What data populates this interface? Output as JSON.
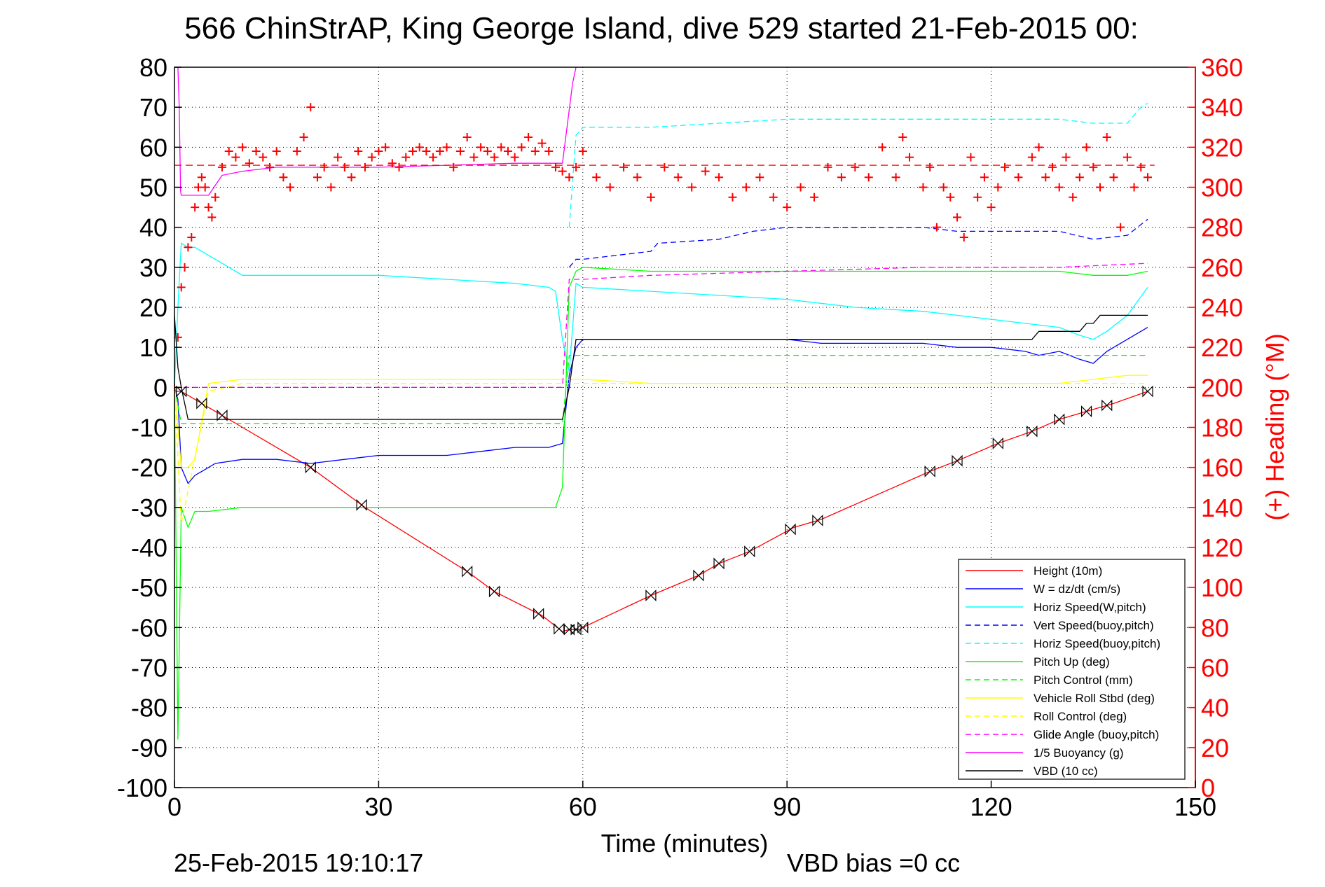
{
  "chart_data": {
    "type": "line",
    "title": "566 ChinStrAP, King George Island, dive 529 started 21-Feb-2015 00:",
    "xlabel": "Time (minutes)",
    "ylabel": "",
    "y2label": "(+) Heading (°M)",
    "xlim": [
      0,
      150
    ],
    "ylim": [
      -100,
      80
    ],
    "y2lim": [
      0,
      360
    ],
    "xticks": [
      0,
      30,
      60,
      90,
      120,
      150
    ],
    "yticks": [
      80,
      70,
      60,
      50,
      40,
      30,
      20,
      10,
      0,
      -10,
      -20,
      -30,
      -40,
      -50,
      -60,
      -70,
      -80,
      -90,
      -100
    ],
    "y2ticks": [
      360,
      340,
      320,
      300,
      280,
      260,
      240,
      220,
      200,
      180,
      160,
      140,
      120,
      100,
      80,
      60,
      40,
      20,
      0
    ],
    "grid": true,
    "legend_position": "bottom-right",
    "colors": {
      "right_axis": "#ff0000",
      "height": "#ff0000",
      "w": "#0000ff",
      "horiz_speed": "#00ffff",
      "pitch": "#00ff00",
      "roll": "#ffff00",
      "glide": "#ff00ff",
      "vbd": "#000000"
    },
    "series": [
      {
        "name": "Height (10m)",
        "color": "#ff0000",
        "dash": false,
        "x": [
          0,
          1,
          5,
          10,
          20,
          28,
          43,
          47,
          54,
          57,
          58,
          59.5,
          60,
          70,
          77,
          80,
          84.5,
          91,
          95,
          111,
          115.5,
          121,
          126,
          130,
          134,
          138,
          143
        ],
        "y": [
          -1,
          -1,
          -5,
          -10,
          -20,
          -30,
          -46,
          -51,
          -57,
          -61,
          -60.5,
          -60.5,
          -60,
          -52,
          -47,
          -44,
          -41,
          -35,
          -33,
          -21,
          -18,
          -14,
          -11,
          -8,
          -6,
          -4,
          -1
        ]
      },
      {
        "name": "W = dz/dt (cm/s)",
        "color": "#0000ff",
        "dash": false,
        "x": [
          0,
          0.5,
          1,
          2,
          3,
          4,
          6,
          10,
          15,
          20,
          25,
          30,
          35,
          40,
          45,
          50,
          55,
          57,
          58,
          59,
          60,
          65,
          70,
          75,
          80,
          85,
          90,
          95,
          100,
          105,
          110,
          115,
          120,
          125,
          127,
          130,
          133,
          135,
          137,
          140,
          143
        ],
        "y": [
          0,
          -3,
          -20,
          -24,
          -22,
          -21,
          -19,
          -18,
          -18,
          -19,
          -18,
          -17,
          -17,
          -17,
          -16,
          -15,
          -15,
          -14,
          3,
          10,
          12,
          12,
          12,
          12,
          12,
          12,
          12,
          11,
          11,
          11,
          11,
          10,
          10,
          9,
          8,
          9,
          7,
          6,
          9,
          12,
          15
        ]
      },
      {
        "name": "Horiz Speed(W,pitch)",
        "color": "#00ffff",
        "dash": false,
        "x": [
          0,
          0.5,
          1,
          2,
          3,
          5,
          8,
          10,
          20,
          30,
          40,
          50,
          55,
          56,
          57,
          58,
          59,
          60,
          70,
          80,
          90,
          100,
          110,
          120,
          125,
          130,
          133,
          135,
          137,
          140,
          143
        ],
        "y": [
          0,
          20,
          36,
          35,
          35,
          33,
          30,
          28,
          28,
          28,
          27,
          26,
          25,
          24,
          12,
          4,
          26,
          25,
          24,
          23,
          22,
          20,
          19,
          17,
          16,
          15,
          13,
          12,
          14,
          18,
          25
        ]
      },
      {
        "name": "Vert Speed(buoy,pitch)",
        "color": "#0000ff",
        "dash": true,
        "x": [
          58,
          59,
          60,
          65,
          70,
          71,
          80,
          85,
          90,
          100,
          105,
          110,
          115,
          120,
          125,
          130,
          135,
          140,
          143
        ],
        "y": [
          30,
          32,
          32,
          33,
          34,
          36,
          37,
          39,
          40,
          40,
          40,
          40,
          39,
          39,
          39,
          39,
          37,
          38,
          42
        ]
      },
      {
        "name": "Horiz Speed(buoy,pitch)",
        "color": "#00ffff",
        "dash": true,
        "x": [
          58,
          59,
          60,
          70,
          80,
          90,
          100,
          110,
          115,
          120,
          125,
          130,
          135,
          140,
          142,
          143
        ],
        "y": [
          40,
          63,
          65,
          65,
          66,
          67,
          67,
          67,
          67,
          67,
          67,
          67,
          66,
          66,
          70,
          71
        ]
      },
      {
        "name": "Pitch Up (deg)",
        "color": "#00ff00",
        "dash": false,
        "x": [
          0,
          0.5,
          1,
          2,
          3,
          5,
          10,
          20,
          30,
          40,
          50,
          56,
          57,
          58,
          59,
          60,
          70,
          80,
          90,
          100,
          110,
          120,
          130,
          135,
          140,
          143
        ],
        "y": [
          0,
          -88,
          -30,
          -35,
          -31,
          -31,
          -30,
          -30,
          -30,
          -30,
          -30,
          -30,
          -25,
          25,
          29,
          30,
          29,
          29,
          29,
          29,
          29,
          29,
          29,
          28,
          28,
          29
        ]
      },
      {
        "name": "Pitch Control (mm)",
        "color": "#00ff00",
        "dash": true,
        "x": [
          0,
          1,
          2,
          5,
          10,
          30,
          56,
          57,
          58,
          60,
          70,
          90,
          110,
          130,
          143
        ],
        "y": [
          0,
          -9,
          -9,
          -9,
          -9,
          -9,
          -9,
          -9,
          8,
          8,
          8,
          8,
          8,
          8,
          8
        ]
      },
      {
        "name": "Vehicle Roll Stbd (deg)",
        "color": "#ffff00",
        "dash": false,
        "x": [
          0,
          1,
          2,
          3,
          5,
          10,
          20,
          30,
          40,
          50,
          56,
          57,
          59,
          60,
          70,
          90,
          110,
          125,
          130,
          135,
          140,
          143
        ],
        "y": [
          0,
          -20,
          -20,
          -18,
          1,
          2,
          2,
          2,
          2,
          2,
          2,
          2,
          2,
          2,
          1,
          1,
          1,
          1,
          1,
          2,
          3,
          3
        ]
      },
      {
        "name": "Roll Control (deg)",
        "color": "#ffff00",
        "dash": true,
        "x": [
          0,
          1,
          5,
          10,
          30,
          57,
          59,
          60,
          90,
          126,
          130,
          143
        ],
        "y": [
          0,
          -34,
          -1,
          1,
          1,
          1,
          1,
          1,
          1,
          1,
          1,
          1
        ]
      },
      {
        "name": "Glide Angle (buoy,pitch)",
        "color": "#ff00ff",
        "dash": true,
        "x": [
          0,
          1,
          10,
          30,
          57,
          58,
          59,
          60,
          70,
          90,
          110,
          130,
          143
        ],
        "y": [
          0,
          0,
          0,
          0,
          0,
          27,
          27,
          27,
          28,
          29,
          30,
          30,
          31
        ]
      },
      {
        "name": "1/5 Buoyancy (g)",
        "color": "#ff00ff",
        "dash": false,
        "x": [
          0.5,
          0.7,
          0.9,
          1,
          3,
          5,
          7,
          10,
          15,
          20,
          30,
          40,
          50,
          57,
          58.5,
          59
        ],
        "y": [
          80,
          70,
          49,
          48,
          48,
          48,
          53,
          54,
          55,
          55,
          55,
          55.5,
          56,
          56,
          76,
          80
        ]
      },
      {
        "name": "VBD (10 cc)",
        "color": "#000000",
        "dash": false,
        "x": [
          0,
          0.5,
          1,
          2,
          7,
          10,
          20,
          30,
          40,
          50,
          57,
          58,
          59,
          60,
          70,
          80,
          90,
          100,
          110,
          119,
          126,
          127,
          133,
          134,
          135,
          136,
          143
        ],
        "y": [
          18,
          5,
          0,
          -8,
          -8,
          -8,
          -8,
          -8,
          -8,
          -8,
          -8,
          0,
          12,
          12,
          12,
          12,
          12,
          12,
          12,
          12,
          12,
          14,
          14,
          16,
          16,
          18,
          18
        ]
      }
    ],
    "heading_series": {
      "name": "(+) Heading",
      "color": "#ff0000",
      "marker": "+",
      "x": [
        0,
        0.5,
        1,
        1.5,
        2,
        2.5,
        3,
        3.5,
        4,
        4.5,
        5,
        5.5,
        6,
        7,
        8,
        9,
        10,
        11,
        12,
        13,
        14,
        15,
        16,
        17,
        18,
        19,
        20,
        21,
        22,
        23,
        24,
        25,
        26,
        27,
        28,
        29,
        30,
        31,
        32,
        33,
        34,
        35,
        36,
        37,
        38,
        39,
        40,
        41,
        42,
        43,
        44,
        45,
        46,
        47,
        48,
        49,
        50,
        51,
        52,
        53,
        54,
        55,
        56,
        57,
        58,
        59,
        60,
        62,
        64,
        66,
        68,
        70,
        72,
        74,
        76,
        78,
        80,
        82,
        84,
        86,
        88,
        90,
        92,
        94,
        96,
        98,
        100,
        102,
        104,
        106,
        107,
        108,
        110,
        111,
        112,
        113,
        114,
        115,
        116,
        117,
        118,
        119,
        120,
        121,
        122,
        124,
        126,
        127,
        128,
        129,
        130,
        131,
        132,
        133,
        134,
        135,
        136,
        137,
        138,
        139,
        140,
        141,
        142,
        143
      ],
      "y": [
        200,
        225,
        250,
        260,
        270,
        275,
        290,
        300,
        305,
        300,
        290,
        285,
        295,
        310,
        318,
        315,
        320,
        312,
        318,
        315,
        310,
        318,
        305,
        300,
        318,
        325,
        340,
        305,
        310,
        300,
        315,
        310,
        305,
        318,
        310,
        315,
        318,
        320,
        312,
        310,
        315,
        318,
        320,
        318,
        315,
        318,
        320,
        310,
        318,
        325,
        315,
        320,
        318,
        315,
        320,
        318,
        315,
        320,
        325,
        318,
        322,
        318,
        310,
        308,
        305,
        310,
        318,
        305,
        300,
        310,
        305,
        295,
        310,
        305,
        300,
        308,
        305,
        295,
        300,
        305,
        295,
        290,
        300,
        295,
        310,
        305,
        310,
        305,
        320,
        305,
        325,
        315,
        300,
        310,
        280,
        300,
        295,
        285,
        275,
        315,
        295,
        305,
        290,
        300,
        310,
        305,
        315,
        320,
        305,
        310,
        300,
        315,
        295,
        305,
        320,
        310,
        300,
        325,
        305,
        280,
        315,
        300,
        310,
        305
      ]
    },
    "heading_mean": 311,
    "turn_markers_x": [
      1,
      4,
      7,
      20,
      27.5,
      43,
      47,
      53.5,
      56.5,
      58,
      59,
      60,
      70,
      77,
      80,
      84.5,
      90.5,
      94.5,
      111,
      115,
      121,
      126,
      130,
      134,
      137,
      143
    ],
    "footer_timestamp": "25-Feb-2015 19:10:17",
    "footer_note": "VBD bias =0 cc"
  }
}
